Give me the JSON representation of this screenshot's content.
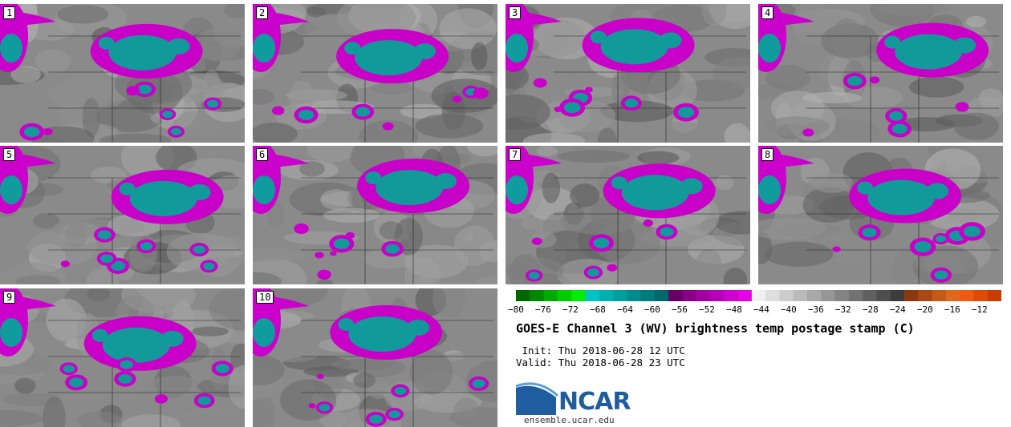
{
  "panels": [
    "1",
    "2",
    "3",
    "4",
    "5",
    "6",
    "7",
    "8",
    "9",
    "10"
  ],
  "colorbar": {
    "ticks": [
      "−80",
      "−76",
      "−72",
      "−68",
      "−64",
      "−60",
      "−56",
      "−52",
      "−48",
      "−44",
      "−40",
      "−36",
      "−32",
      "−28",
      "−24",
      "−20",
      "−16",
      "−12"
    ],
    "colors": [
      "#006600",
      "#008800",
      "#00aa00",
      "#00cc00",
      "#00ee00",
      "#00c4c4",
      "#00b0b0",
      "#009e9e",
      "#008c8c",
      "#007a7a",
      "#006868",
      "#660066",
      "#880088",
      "#a000a0",
      "#b800b8",
      "#d000d0",
      "#e600e6",
      "#f0f0f0",
      "#dedede",
      "#cccccc",
      "#bababa",
      "#a8a8a8",
      "#969696",
      "#848484",
      "#727272",
      "#606060",
      "#4e4e4e",
      "#3c3c3c",
      "#8b3a0f",
      "#a84812",
      "#c45a16",
      "#e0681a",
      "#ee5a10",
      "#e04a08",
      "#cc3a04"
    ]
  },
  "title": "GOES-E Channel 3 (WV) brightness temp postage stamp (C)",
  "init": " Init: Thu 2018-06-28 12 UTC",
  "valid": "Valid: Thu 2018-06-28 23 UTC",
  "logo": {
    "name": "NCAR",
    "url": "ensemble.ucar.edu"
  }
}
